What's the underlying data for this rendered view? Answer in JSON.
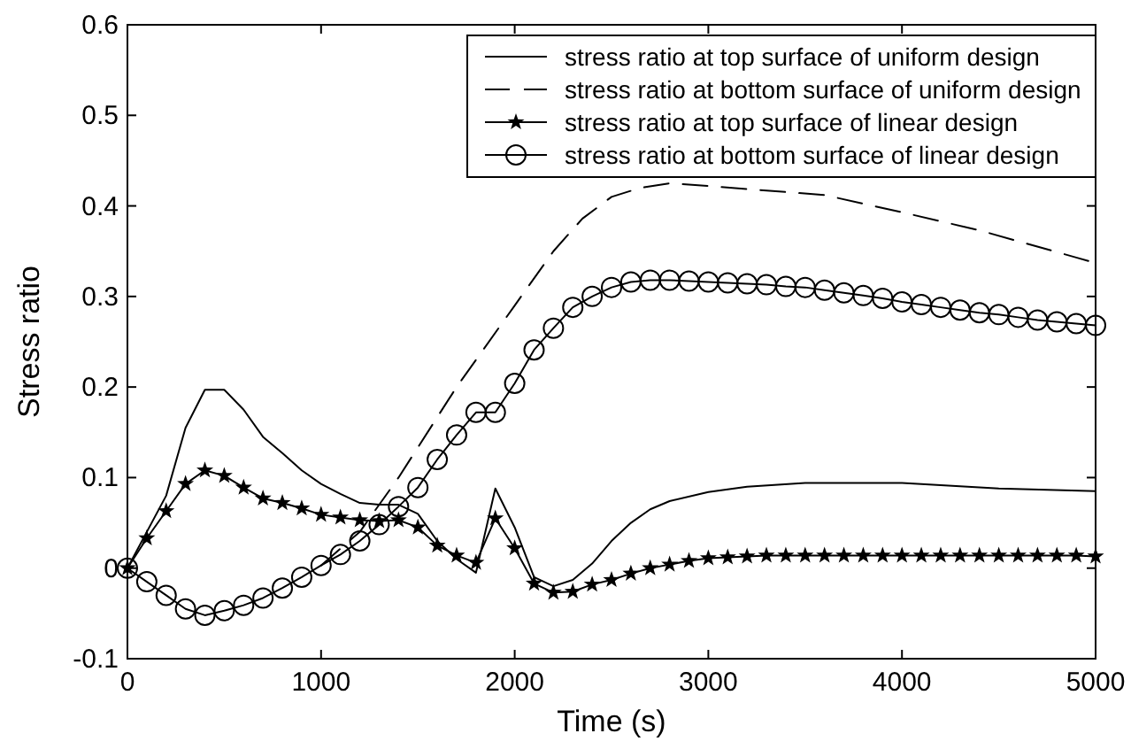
{
  "chart_data": {
    "type": "line",
    "xlabel": "Time (s)",
    "ylabel": "Stress ratio",
    "xlim": [
      0,
      5000
    ],
    "ylim": [
      -0.1,
      0.6
    ],
    "xticks": [
      0,
      1000,
      2000,
      3000,
      4000,
      5000
    ],
    "yticks": [
      -0.1,
      0,
      0.1,
      0.2,
      0.3,
      0.4,
      0.5,
      0.6
    ],
    "grid": false,
    "legend": "top right",
    "series": [
      {
        "name": "stress ratio at top surface of uniform design",
        "color": "#000000",
        "line_style": "solid",
        "marker": "none",
        "x": [
          0,
          200,
          300,
          400,
          500,
          600,
          700,
          800,
          900,
          1000,
          1100,
          1200,
          1300,
          1400,
          1500,
          1600,
          1700,
          1800,
          1900,
          2000,
          2100,
          2200,
          2300,
          2400,
          2500,
          2600,
          2700,
          2800,
          3000,
          3200,
          3500,
          4000,
          4500,
          5000
        ],
        "values": [
          0,
          0.08,
          0.155,
          0.197,
          0.197,
          0.175,
          0.145,
          0.127,
          0.108,
          0.093,
          0.082,
          0.072,
          0.07,
          0.07,
          0.06,
          0.03,
          0.01,
          -0.005,
          0.088,
          0.045,
          -0.01,
          -0.02,
          -0.013,
          0.005,
          0.03,
          0.05,
          0.065,
          0.074,
          0.084,
          0.09,
          0.094,
          0.094,
          0.088,
          0.085
        ]
      },
      {
        "name": "stress ratio at bottom surface of uniform design",
        "color": "#000000",
        "line_style": "dashed",
        "marker": "none",
        "x": [
          1000,
          1200,
          1400,
          1700,
          2000,
          2200,
          2350,
          2500,
          2650,
          2800,
          3000,
          3600,
          4000,
          4400,
          4900,
          5000
        ],
        "values": [
          0.003,
          0.04,
          0.1,
          0.2,
          0.29,
          0.35,
          0.386,
          0.41,
          0.42,
          0.425,
          0.422,
          0.412,
          0.393,
          0.373,
          0.343,
          0.337
        ]
      },
      {
        "name": "stress ratio at top surface of linear design",
        "color": "#000000",
        "line_style": "solid",
        "marker": "star",
        "x": [
          0,
          100,
          200,
          300,
          400,
          500,
          600,
          700,
          800,
          900,
          1000,
          1100,
          1200,
          1300,
          1400,
          1500,
          1600,
          1700,
          1800,
          1900,
          2000,
          2100,
          2200,
          2300,
          2400,
          2500,
          2600,
          2700,
          2800,
          2900,
          3000,
          3100,
          3200,
          3300,
          3400,
          3500,
          3600,
          3700,
          3800,
          3900,
          4000,
          4100,
          4200,
          4300,
          4400,
          4500,
          4600,
          4700,
          4800,
          4900,
          5000
        ],
        "values": [
          0,
          0.033,
          0.063,
          0.093,
          0.108,
          0.102,
          0.089,
          0.077,
          0.072,
          0.066,
          0.059,
          0.056,
          0.053,
          0.052,
          0.053,
          0.045,
          0.025,
          0.014,
          0.006,
          0.055,
          0.022,
          -0.017,
          -0.027,
          -0.026,
          -0.018,
          -0.013,
          -0.006,
          0,
          0.004,
          0.008,
          0.011,
          0.012,
          0.013,
          0.014,
          0.014,
          0.014,
          0.014,
          0.014,
          0.014,
          0.014,
          0.014,
          0.014,
          0.014,
          0.014,
          0.014,
          0.014,
          0.014,
          0.014,
          0.014,
          0.014,
          0.013
        ]
      },
      {
        "name": "stress ratio at bottom surface of linear design",
        "color": "#000000",
        "line_style": "solid",
        "marker": "circle",
        "x": [
          0,
          100,
          200,
          300,
          400,
          500,
          600,
          700,
          800,
          900,
          1000,
          1100,
          1200,
          1300,
          1400,
          1500,
          1600,
          1700,
          1800,
          1900,
          2000,
          2100,
          2200,
          2300,
          2400,
          2500,
          2600,
          2700,
          2800,
          2900,
          3000,
          3100,
          3200,
          3300,
          3400,
          3500,
          3600,
          3700,
          3800,
          3900,
          4000,
          4100,
          4200,
          4300,
          4400,
          4500,
          4600,
          4700,
          4800,
          4900,
          5000
        ],
        "values": [
          0,
          -0.015,
          -0.03,
          -0.045,
          -0.052,
          -0.047,
          -0.041,
          -0.033,
          -0.022,
          -0.01,
          0.003,
          0.015,
          0.03,
          0.048,
          0.068,
          0.089,
          0.12,
          0.147,
          0.172,
          0.172,
          0.204,
          0.241,
          0.265,
          0.288,
          0.3,
          0.31,
          0.316,
          0.318,
          0.318,
          0.317,
          0.316,
          0.315,
          0.314,
          0.313,
          0.311,
          0.31,
          0.307,
          0.304,
          0.301,
          0.298,
          0.294,
          0.291,
          0.288,
          0.285,
          0.282,
          0.28,
          0.277,
          0.274,
          0.272,
          0.27,
          0.268
        ]
      }
    ]
  }
}
